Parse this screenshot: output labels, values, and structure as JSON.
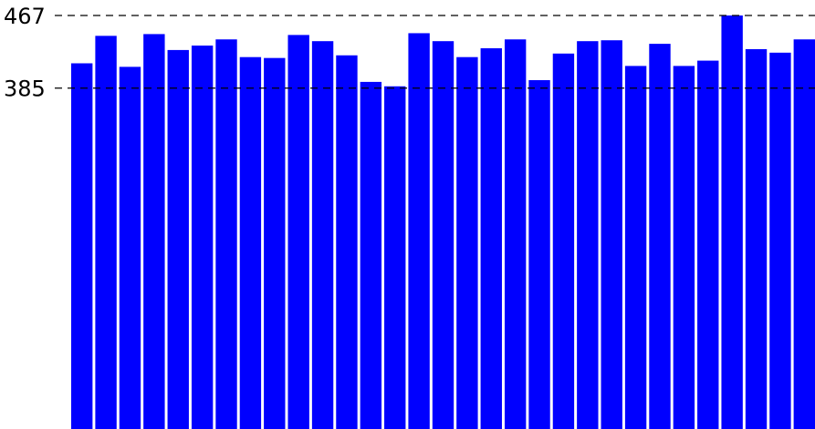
{
  "chart_data": {
    "type": "bar",
    "title": "",
    "xlabel": "",
    "ylabel": "",
    "ylim": [
      0,
      467
    ],
    "grid": false,
    "legend": "none",
    "bar_color": "#0000ff",
    "reference_lines": [
      {
        "value": 467,
        "label": "467"
      },
      {
        "value": 385,
        "label": "385"
      }
    ],
    "values": [
      413,
      444,
      409,
      446,
      428,
      433,
      440,
      420,
      419,
      445,
      438,
      422,
      392,
      387,
      447,
      438,
      420,
      430,
      440,
      394,
      424,
      438,
      439,
      410,
      435,
      410,
      416,
      467,
      429,
      425,
      440
    ]
  }
}
